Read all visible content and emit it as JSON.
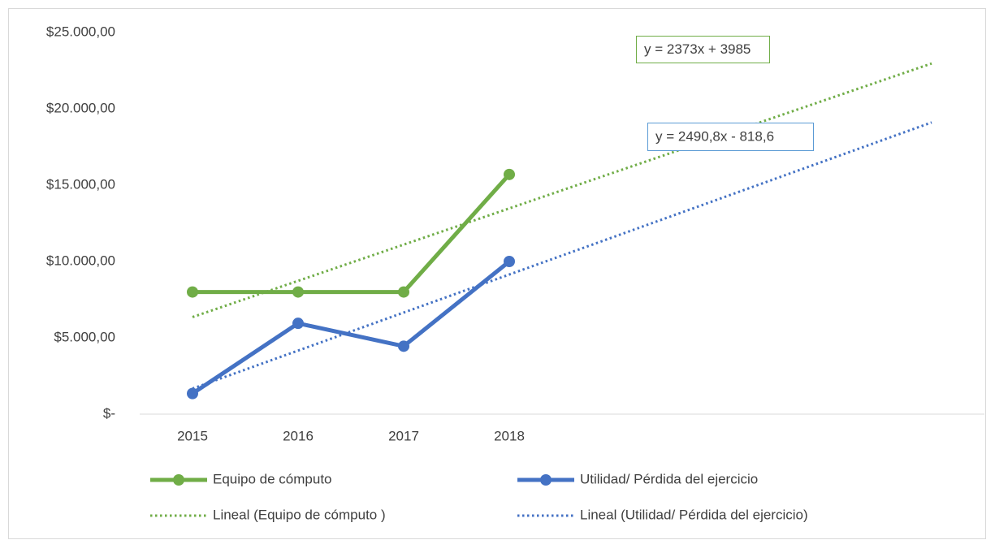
{
  "chart_data": {
    "type": "line",
    "categories": [
      "2015",
      "2016",
      "2017",
      "2018",
      null,
      null,
      null,
      null
    ],
    "series": [
      {
        "name": "Equipo de cómputo",
        "color": "#70ad47",
        "style": "solid",
        "values": [
          8000,
          8000,
          8000,
          15700,
          null,
          null,
          null,
          null
        ]
      },
      {
        "name": "Utilidad/ Pérdida del ejercicio",
        "color": "#4472c4",
        "style": "solid",
        "values": [
          1350,
          5950,
          4450,
          10000,
          null,
          null,
          null,
          null
        ]
      },
      {
        "name": "Lineal (Equipo de cómputo )",
        "color": "#70ad47",
        "style": "dotted",
        "values": [
          6358,
          8731,
          11104,
          13477,
          15850,
          18223,
          20596,
          22969
        ]
      },
      {
        "name": "Lineal (Utilidad/ Pérdida del ejercicio)",
        "color": "#4472c4",
        "style": "dotted",
        "values": [
          1672,
          4163,
          6654,
          9145,
          11635,
          14126,
          16617,
          19108
        ]
      }
    ],
    "annotations": [
      {
        "text": "y = 2373x + 3985",
        "color": "#70ad47"
      },
      {
        "text": "y = 2490,8x - 818,6",
        "color": "#5b9bd5"
      }
    ],
    "ylim": [
      0,
      25000
    ],
    "yticks": [
      {
        "value": 0,
        "label": "$-"
      },
      {
        "value": 5000,
        "label": "$5.000,00"
      },
      {
        "value": 10000,
        "label": "$10.000,00"
      },
      {
        "value": 15000,
        "label": "$15.000,00"
      },
      {
        "value": 20000,
        "label": "$20.000,00"
      },
      {
        "value": 25000,
        "label": "$25.000,00"
      }
    ],
    "grid": false
  }
}
